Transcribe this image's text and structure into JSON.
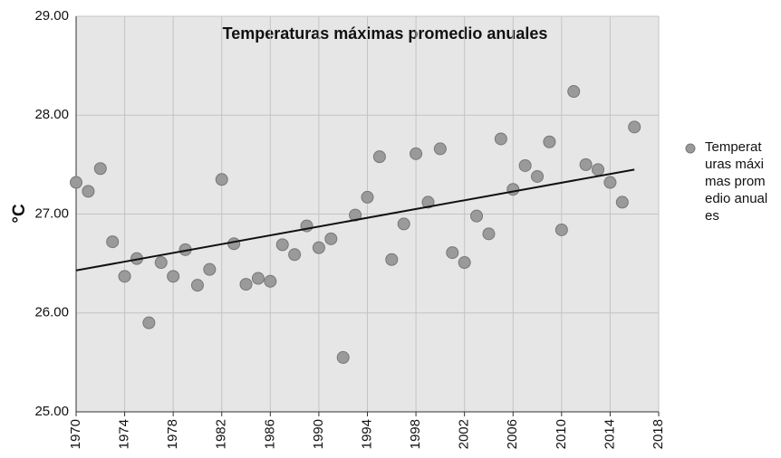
{
  "chart_data": {
    "type": "scatter",
    "title": "Temperaturas máximas promedio anuales",
    "y_label": "°C",
    "xlim": [
      1970,
      2018
    ],
    "xticks": [
      1970,
      1974,
      1978,
      1982,
      1986,
      1990,
      1994,
      1998,
      2002,
      2006,
      2010,
      2014,
      2018
    ],
    "ylim": [
      25,
      29
    ],
    "yticks": [
      {
        "value": 25,
        "label": "25.00"
      },
      {
        "value": 26,
        "label": "26.00"
      },
      {
        "value": 27,
        "label": "27.00"
      },
      {
        "value": 28,
        "label": "28.00"
      },
      {
        "value": 29,
        "label": "29.00"
      }
    ],
    "grid": true,
    "legend": "right",
    "series": [
      {
        "name": "Temperaturas máximas promedio anuales",
        "color": "#9a9a9a",
        "x": [
          1970,
          1971,
          1972,
          1973,
          1974,
          1975,
          1976,
          1977,
          1978,
          1979,
          1980,
          1981,
          1982,
          1983,
          1984,
          1985,
          1986,
          1987,
          1988,
          1989,
          1990,
          1991,
          1992,
          1993,
          1994,
          1995,
          1996,
          1997,
          1998,
          1999,
          2000,
          2001,
          2002,
          2003,
          2004,
          2005,
          2006,
          2007,
          2008,
          2009,
          2010,
          2011,
          2012,
          2013,
          2014,
          2015,
          2016
        ],
        "values": [
          27.32,
          27.23,
          27.46,
          26.72,
          26.37,
          26.55,
          25.9,
          26.51,
          26.37,
          26.64,
          26.28,
          26.44,
          27.35,
          26.7,
          26.29,
          26.35,
          26.32,
          26.69,
          26.59,
          26.88,
          26.66,
          26.75,
          25.55,
          26.99,
          27.17,
          27.58,
          26.54,
          26.9,
          27.61,
          27.12,
          27.66,
          26.61,
          26.51,
          26.98,
          26.8,
          27.76,
          27.25,
          27.49,
          27.38,
          27.73,
          26.84,
          28.24,
          27.5,
          27.45,
          27.32,
          27.12,
          27.88
        ]
      }
    ],
    "trendline": {
      "color": "#111111",
      "x": [
        1970,
        2016
      ],
      "values": [
        26.43,
        27.45
      ]
    }
  }
}
